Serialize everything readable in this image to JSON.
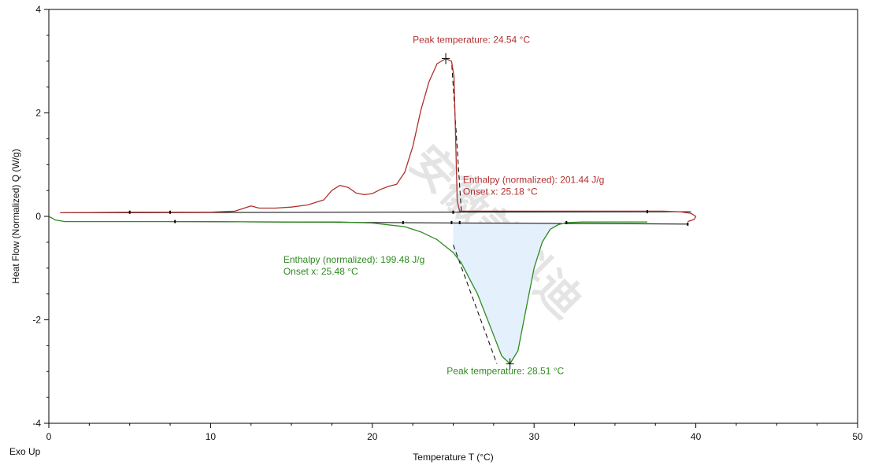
{
  "colors": {
    "heating": "#b0302e",
    "cooling": "#2e8b1f",
    "baseline": "#000000",
    "fill": "#e4f0fb",
    "axis": "#000000",
    "watermark": "#cfcfcf"
  },
  "labels": {
    "exo_up": "Exo Up",
    "watermark_text": "安徽美科迪"
  },
  "chart_data": {
    "type": "line",
    "xlabel": "Temperature  T (°C)",
    "ylabel": "Heat Flow (Normalized)  Q (W/g)",
    "xlim": [
      0,
      50
    ],
    "ylim": [
      -4,
      4
    ],
    "x_ticks": [
      0,
      10,
      20,
      30,
      40,
      50
    ],
    "y_ticks": [
      -4,
      -2,
      0,
      2,
      4
    ],
    "grid": false,
    "series": [
      {
        "points": [
          [
            0.7,
            0.07
          ],
          [
            5,
            0.08
          ],
          [
            10,
            0.08
          ],
          [
            11.5,
            0.1
          ],
          [
            12.5,
            0.2
          ],
          [
            13,
            0.16
          ],
          [
            14,
            0.16
          ],
          [
            15,
            0.18
          ],
          [
            16,
            0.22
          ],
          [
            17,
            0.32
          ],
          [
            17.5,
            0.5
          ],
          [
            18,
            0.6
          ],
          [
            18.5,
            0.56
          ],
          [
            19,
            0.45
          ],
          [
            19.5,
            0.42
          ],
          [
            20,
            0.44
          ],
          [
            20.5,
            0.52
          ],
          [
            21,
            0.58
          ],
          [
            21.5,
            0.62
          ],
          [
            22,
            0.85
          ],
          [
            22.5,
            1.35
          ],
          [
            23,
            2.05
          ],
          [
            23.5,
            2.6
          ],
          [
            24,
            2.95
          ],
          [
            24.54,
            3.05
          ],
          [
            24.9,
            3.0
          ],
          [
            25.05,
            2.7
          ],
          [
            25.15,
            1.5
          ],
          [
            25.25,
            0.3
          ],
          [
            25.4,
            0.1
          ],
          [
            27,
            0.1
          ],
          [
            30,
            0.1
          ],
          [
            35,
            0.1
          ],
          [
            38,
            0.1
          ],
          [
            39,
            0.09
          ],
          [
            39.7,
            0.06
          ],
          [
            40.0,
            0.0
          ],
          [
            39.9,
            -0.06
          ],
          [
            39.5,
            -0.1
          ]
        ]
      },
      {
        "points": [
          [
            0,
            0.0
          ],
          [
            0.4,
            -0.07
          ],
          [
            1,
            -0.1
          ],
          [
            5,
            -0.1
          ],
          [
            10,
            -0.1
          ],
          [
            15,
            -0.11
          ],
          [
            18,
            -0.11
          ],
          [
            20,
            -0.13
          ],
          [
            22,
            -0.2
          ],
          [
            23,
            -0.3
          ],
          [
            24,
            -0.45
          ],
          [
            25,
            -0.7
          ],
          [
            25.5,
            -0.9
          ],
          [
            26,
            -1.2
          ],
          [
            26.5,
            -1.5
          ],
          [
            27,
            -1.9
          ],
          [
            27.5,
            -2.3
          ],
          [
            28,
            -2.7
          ],
          [
            28.51,
            -2.85
          ],
          [
            29,
            -2.6
          ],
          [
            29.5,
            -1.8
          ],
          [
            30,
            -1.0
          ],
          [
            30.5,
            -0.5
          ],
          [
            31,
            -0.25
          ],
          [
            31.5,
            -0.16
          ],
          [
            32,
            -0.12
          ],
          [
            33,
            -0.11
          ],
          [
            35,
            -0.11
          ],
          [
            37,
            -0.11
          ]
        ]
      }
    ],
    "baselines": [
      {
        "from": [
          0.7,
          0.07
        ],
        "to": [
          39.7,
          0.09
        ]
      },
      {
        "from": [
          7.5,
          -0.1
        ],
        "to": [
          39.5,
          -0.15
        ]
      }
    ],
    "onset_tangents": [
      {
        "from": [
          25.5,
          0.1
        ],
        "to": [
          24.9,
          3.0
        ]
      },
      {
        "from": [
          25.0,
          -0.55
        ],
        "to": [
          27.7,
          -2.85
        ]
      }
    ],
    "integration_marks": [
      [
        5.0,
        0.08
      ],
      [
        7.5,
        0.08
      ],
      [
        25.0,
        0.08
      ],
      [
        37.0,
        0.09
      ],
      [
        7.8,
        -0.1
      ],
      [
        21.9,
        -0.12
      ],
      [
        24.9,
        -0.12
      ],
      [
        25.4,
        -0.12
      ],
      [
        32.0,
        -0.12
      ],
      [
        39.5,
        -0.15
      ]
    ],
    "annotations": [
      {
        "lines": [
          "Peak temperature: 24.54 °C"
        ],
        "at": [
          22.5,
          3.35
        ],
        "color_key": "heating",
        "marker": [
          24.54,
          3.05
        ]
      },
      {
        "lines": [
          "Enthalpy (normalized): 201.44 J/g",
          "Onset x: 25.18 °C"
        ],
        "at": [
          25.6,
          0.65
        ],
        "color_key": "heating",
        "marker": null
      },
      {
        "lines": [
          "Enthalpy (normalized): 199.48 J/g",
          "Onset x: 25.48 °C"
        ],
        "at": [
          14.5,
          -0.9
        ],
        "color_key": "cooling",
        "marker": null
      },
      {
        "lines": [
          "Peak temperature: 28.51 °C"
        ],
        "at": [
          24.6,
          -3.05
        ],
        "color_key": "cooling",
        "marker": [
          28.51,
          -2.85
        ]
      }
    ],
    "shaded_peak_range": [
      25.0,
      32.0
    ]
  }
}
